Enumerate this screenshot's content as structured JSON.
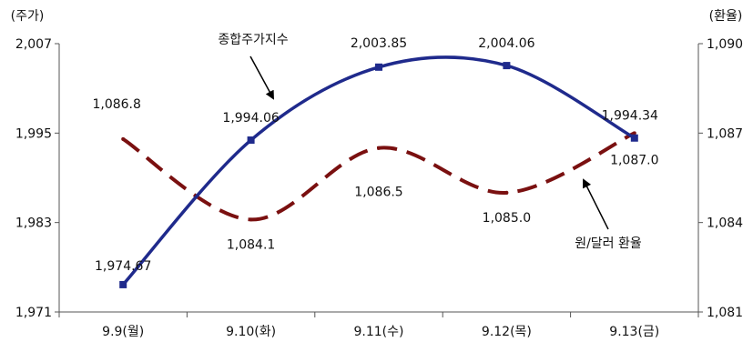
{
  "chart_data": {
    "type": "line",
    "categories": [
      "9.9(월)",
      "9.10(화)",
      "9.11(수)",
      "9.12(목)",
      "9.13(금)"
    ],
    "left_axis": {
      "unit_label": "(주가)",
      "ylim": [
        1971,
        2007
      ],
      "ticks": [
        "1,971",
        "1,983",
        "1,995",
        "2,007"
      ],
      "tick_values": [
        1971,
        1983,
        1995,
        2007
      ]
    },
    "right_axis": {
      "unit_label": "(환율)",
      "ylim": [
        1081,
        1090
      ],
      "ticks": [
        "1,081",
        "1,084",
        "1,087",
        "1,090"
      ],
      "tick_values": [
        1081,
        1084,
        1087,
        1090
      ]
    },
    "series": [
      {
        "name": "종합주가지수",
        "axis": "left",
        "color": "#1f2a8c",
        "style": "solid",
        "values": [
          1974.67,
          1994.06,
          2003.85,
          2004.06,
          1994.34
        ],
        "labels": [
          "1,974.67",
          "1,994.06",
          "2,003.85",
          "2,004.06",
          "1,994.34"
        ]
      },
      {
        "name": "원/달러 환율",
        "axis": "right",
        "color": "#7a1010",
        "style": "dashed",
        "values": [
          1086.8,
          1084.1,
          1086.5,
          1085.0,
          1087.0
        ],
        "labels": [
          "1,086.8",
          "1,084.1",
          "1,086.5",
          "1,085.0",
          "1,087.0"
        ]
      }
    ],
    "legend": "annotated-arrows",
    "grid": false
  }
}
